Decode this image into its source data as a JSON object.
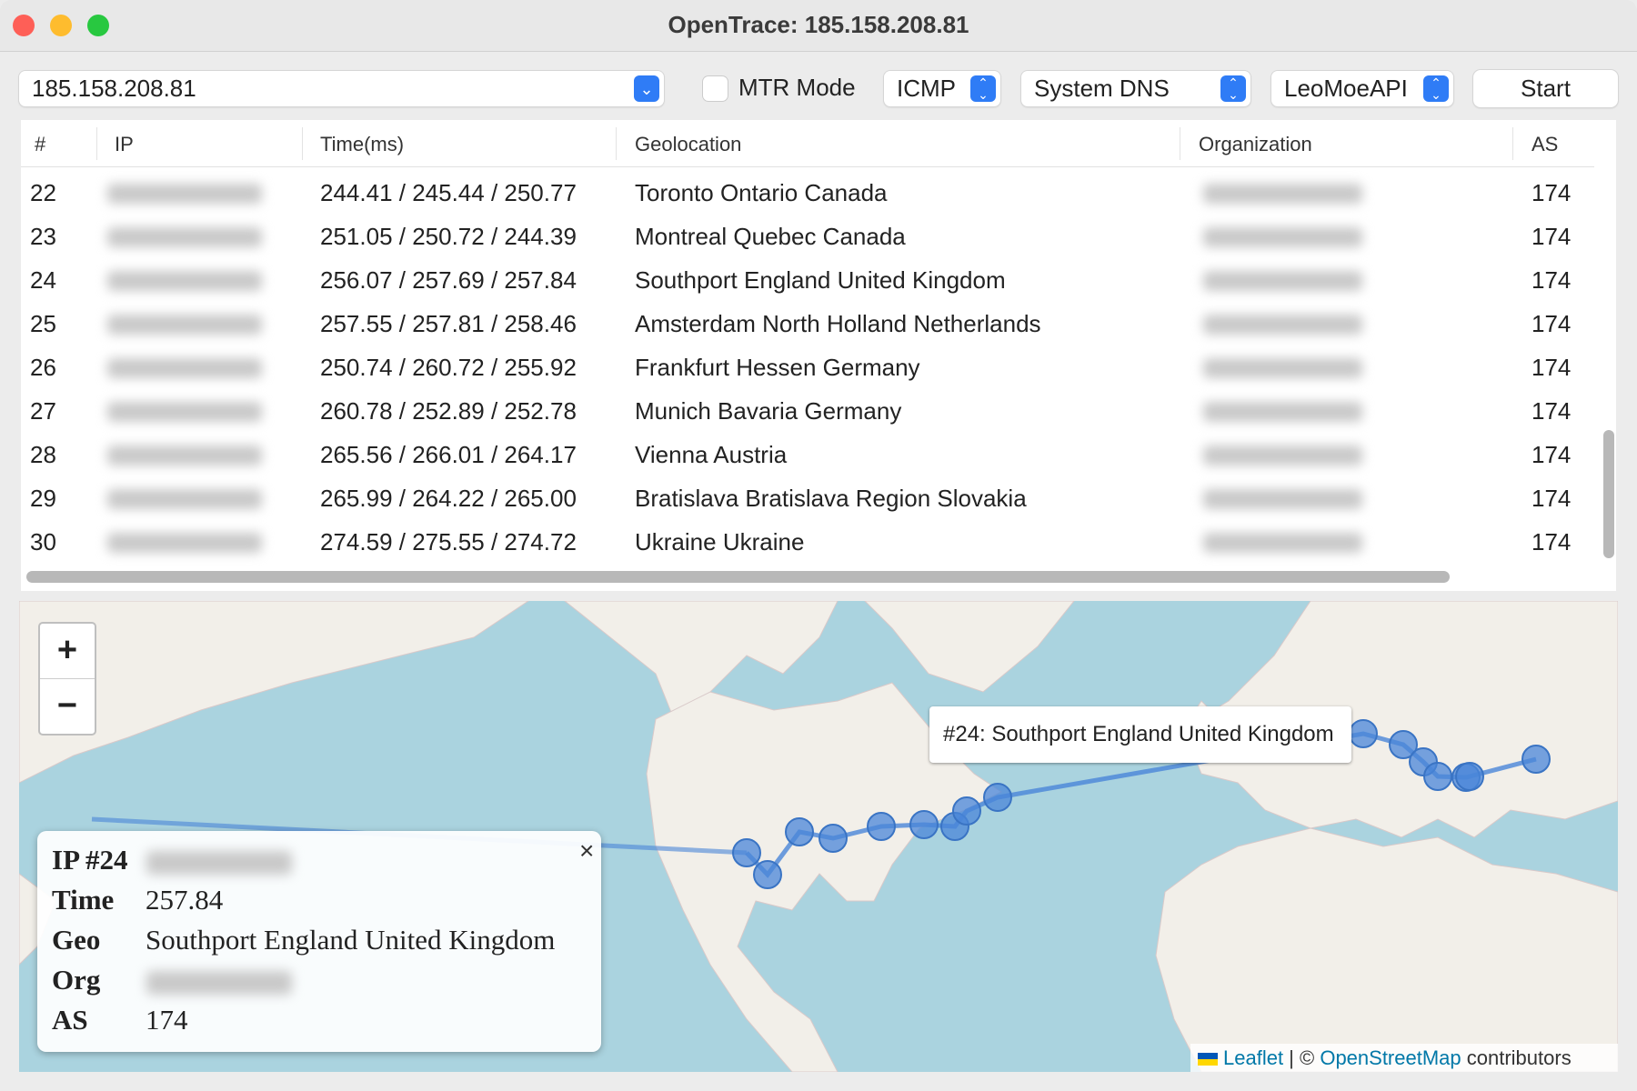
{
  "window": {
    "title": "OpenTrace: 185.158.208.81"
  },
  "toolbar": {
    "target_value": "185.158.208.81",
    "mtr_label": "MTR Mode",
    "mtr_checked": false,
    "protocol": "ICMP",
    "dns": "System DNS",
    "api": "LeoMoeAPI",
    "start_label": "Start"
  },
  "table": {
    "headers": [
      "#",
      "IP",
      "Time(ms)",
      "Geolocation",
      "Organization",
      "AS"
    ],
    "rows": [
      {
        "hop": "22",
        "time": "244.41 / 245.44 / 250.77",
        "geo": "Toronto Ontario Canada",
        "as": "174"
      },
      {
        "hop": "23",
        "time": "251.05 / 250.72 / 244.39",
        "geo": "Montreal Quebec Canada",
        "as": "174"
      },
      {
        "hop": "24",
        "time": "256.07 / 257.69 / 257.84",
        "geo": "Southport England United Kingdom",
        "as": "174"
      },
      {
        "hop": "25",
        "time": "257.55 / 257.81 / 258.46",
        "geo": "Amsterdam North Holland Netherlands",
        "as": "174"
      },
      {
        "hop": "26",
        "time": "250.74 / 260.72 / 255.92",
        "geo": "Frankfurt Hessen Germany",
        "as": "174"
      },
      {
        "hop": "27",
        "time": "260.78 / 252.89 / 252.78",
        "geo": "Munich Bavaria Germany",
        "as": "174"
      },
      {
        "hop": "28",
        "time": "265.56 / 266.01 / 264.17",
        "geo": "Vienna Austria",
        "as": "174"
      },
      {
        "hop": "29",
        "time": "265.99 / 264.22 / 265.00",
        "geo": "Bratislava Bratislava Region Slovakia",
        "as": "174"
      },
      {
        "hop": "30",
        "time": "274.59 / 275.55 / 274.72",
        "geo": "Ukraine Ukraine",
        "as": "174"
      }
    ]
  },
  "map": {
    "zoom_in": "+",
    "zoom_out": "−",
    "tooltip": "#24: Southport England United Kingdom",
    "popup": {
      "ip_label": "IP #24",
      "time_label": "Time",
      "time": "257.84",
      "geo_label": "Geo",
      "geo": "Southport England United Kingdom",
      "org_label": "Org",
      "as_label": "AS",
      "as": "174",
      "close": "×"
    },
    "attribution": {
      "leaflet": "Leaflet",
      "sep": " | © ",
      "osm": "OpenStreetMap",
      "contrib": " contributors"
    },
    "route_color": "#4a86d8",
    "ocean_color": "#aad3df",
    "land_color": "#f2efe9"
  }
}
